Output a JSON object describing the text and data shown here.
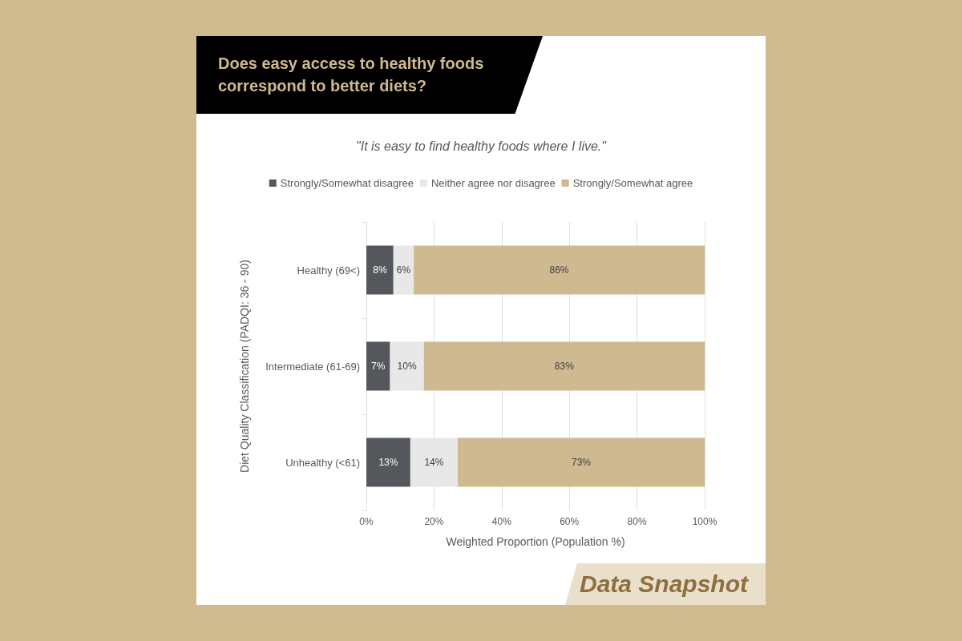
{
  "chart_data": {
    "type": "bar",
    "orientation": "horizontal",
    "stacked": true,
    "title": "Does easy access to healthy foods correspond to better diets?",
    "subtitle": "\"It is easy to find healthy foods where I live.\"",
    "xlabel": "Weighted Proportion (Population %)",
    "ylabel": "Diet Quality Classification (PADQI: 36 - 90)",
    "categories": [
      "Healthy (69<)",
      "Intermediate (61-69)",
      "Unhealthy (<61)"
    ],
    "series": [
      {
        "name": "Strongly/Somewhat disagree",
        "color": "#54575c",
        "values": [
          8,
          7,
          13
        ],
        "value_labels": [
          "8%",
          "7%",
          "13%"
        ]
      },
      {
        "name": "Neither agree nor disagree",
        "color": "#e8e8e8",
        "values": [
          6,
          10,
          14
        ],
        "value_labels": [
          "6%",
          "10%",
          "14%"
        ]
      },
      {
        "name": "Strongly/Somewhat agree",
        "color": "#cfb991",
        "values": [
          86,
          83,
          73
        ],
        "value_labels": [
          "86%",
          "83%",
          "73%"
        ]
      }
    ],
    "xlim": [
      0,
      100
    ],
    "xticks": [
      {
        "value": 0,
        "label": "0%"
      },
      {
        "value": 20,
        "label": "20%"
      },
      {
        "value": 40,
        "label": "40%"
      },
      {
        "value": 60,
        "label": "60%"
      },
      {
        "value": 80,
        "label": "80%"
      },
      {
        "value": 100,
        "label": "100%"
      }
    ],
    "grid": "x",
    "legend": "top",
    "annotations": [
      "Data Snapshot"
    ]
  }
}
